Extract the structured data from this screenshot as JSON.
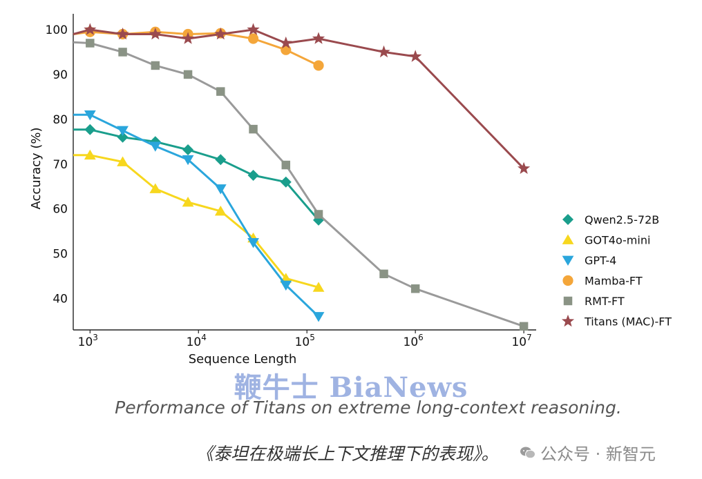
{
  "chart_data": {
    "type": "line",
    "xlabel": "Sequence Length",
    "ylabel": "Accuracy (%)",
    "xscale": "log",
    "xlim": [
      700,
      13000000
    ],
    "ylim": [
      33,
      102
    ],
    "yticks": [
      40,
      50,
      60,
      70,
      80,
      90,
      100
    ],
    "xticks": [
      {
        "value": 1000,
        "base": "10",
        "exp": "3"
      },
      {
        "value": 10000,
        "base": "10",
        "exp": "4"
      },
      {
        "value": 100000,
        "base": "10",
        "exp": "5"
      },
      {
        "value": 1000000,
        "base": "10",
        "exp": "6"
      },
      {
        "value": 10000000,
        "base": "10",
        "exp": "7"
      }
    ],
    "grid": false,
    "legend_position": "right",
    "series": [
      {
        "name": "Qwen2.5-72B",
        "color": "#1a9e8c",
        "marker": "diamond",
        "x": [
          700,
          1000,
          2000,
          4000,
          8000,
          16000,
          32000,
          64000,
          128000
        ],
        "y": [
          77.7,
          77.7,
          76,
          75,
          73.2,
          71,
          67.5,
          66,
          57.5
        ]
      },
      {
        "name": "GOT4o-mini",
        "color": "#f7d71e",
        "marker": "triangle-up",
        "x": [
          700,
          1000,
          2000,
          4000,
          8000,
          16000,
          32000,
          64000,
          128000
        ],
        "y": [
          72,
          72,
          70.5,
          64.5,
          61.5,
          59.5,
          53.5,
          44.5,
          42.5
        ]
      },
      {
        "name": "GPT-4",
        "color": "#2aa6dc",
        "marker": "triangle-down",
        "x": [
          700,
          1000,
          2000,
          4000,
          8000,
          16000,
          32000,
          64000,
          128000
        ],
        "y": [
          81,
          81,
          77.5,
          74,
          71,
          64.5,
          52.5,
          43,
          36
        ]
      },
      {
        "name": "Mamba-FT",
        "color": "#f4a63a",
        "marker": "circle",
        "x": [
          700,
          1000,
          2000,
          4000,
          8000,
          16000,
          32000,
          64000,
          128000
        ],
        "y": [
          99,
          99.5,
          99,
          99.5,
          99,
          99.2,
          98,
          95.5,
          92
        ]
      },
      {
        "name": "RMT-FT",
        "color": "#8a9385",
        "line_color": "#9a9a9a",
        "marker": "square",
        "x": [
          700,
          1000,
          2000,
          4000,
          8000,
          16000,
          32000,
          64000,
          128000,
          512000,
          1000000,
          10000000
        ],
        "y": [
          97.2,
          97,
          95,
          92,
          90,
          86.2,
          77.8,
          69.8,
          58.8,
          45.5,
          42.2,
          33.8
        ]
      },
      {
        "name": "Titans (MAC)-FT",
        "color": "#9a4a4e",
        "marker": "star",
        "x": [
          700,
          1000,
          2000,
          4000,
          8000,
          16000,
          32000,
          64000,
          128000,
          512000,
          1000000,
          10000000
        ],
        "y": [
          99,
          100,
          99,
          99,
          98,
          99,
          100,
          97,
          98,
          95,
          94,
          69
        ]
      }
    ]
  },
  "watermark": "鞭牛士 BiaNews",
  "caption_en": "Performance of Titans on extreme long-context reasoning.",
  "caption_cn": "《泰坦在极端长上下文推理下的表现》。",
  "wechat_account": "公众号 · 新智元"
}
